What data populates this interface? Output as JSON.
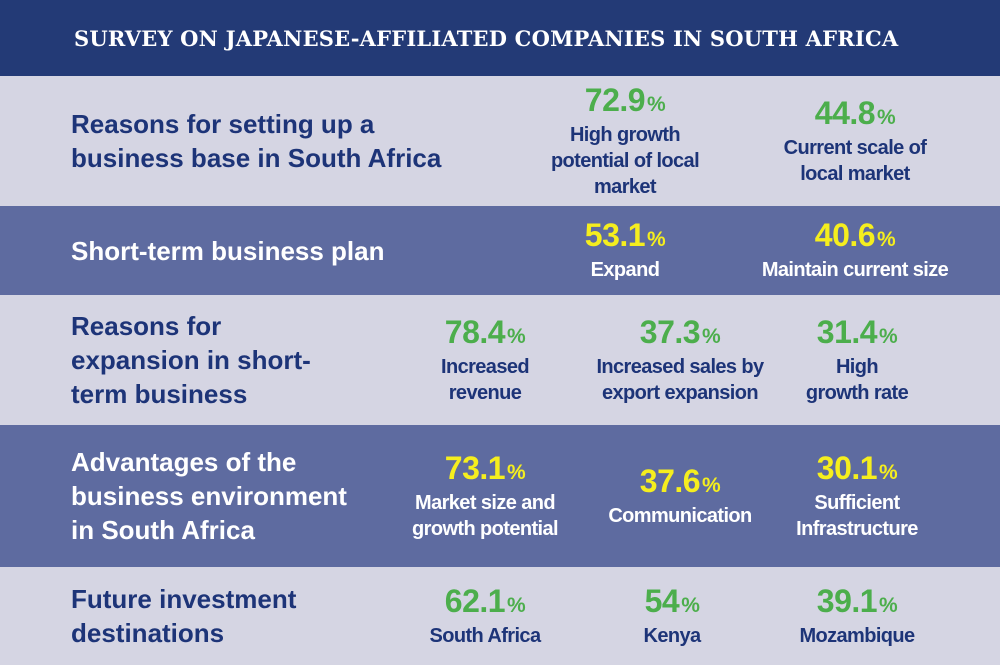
{
  "title": "SURVEY ON JAPANESE-AFFILIATED COMPANIES IN SOUTH AFRICA",
  "colors": {
    "header": "#233a76",
    "light_row": "#d5d5e3",
    "dark_row": "#5e6ba0",
    "green": "#4cae4c",
    "yellow": "#f5ee1e",
    "navy_text": "#1d3478"
  },
  "rows": [
    {
      "title": "Reasons for setting up a\nbusiness base in South Africa",
      "stats": [
        {
          "value": "72.9",
          "unit": "%",
          "label": "High growth\npotential of local\nmarket"
        },
        {
          "value": "44.8",
          "unit": "%",
          "label": "Current scale of\nlocal market"
        }
      ]
    },
    {
      "title": "Short-term business plan",
      "stats": [
        {
          "value": "53.1",
          "unit": "%",
          "label": "Expand"
        },
        {
          "value": "40.6",
          "unit": "%",
          "label": "Maintain current size"
        }
      ]
    },
    {
      "title": "Reasons for\nexpansion in short-\nterm business",
      "stats": [
        {
          "value": "78.4",
          "unit": "%",
          "label": "Increased\nrevenue"
        },
        {
          "value": "37.3",
          "unit": "%",
          "label": "Increased sales by\nexport expansion"
        },
        {
          "value": "31.4",
          "unit": "%",
          "label": "High\ngrowth rate"
        }
      ]
    },
    {
      "title": "Advantages of the\nbusiness environment\nin South Africa",
      "stats": [
        {
          "value": "73.1",
          "unit": "%",
          "label": "Market size and\ngrowth potential"
        },
        {
          "value": "37.6",
          "unit": "%",
          "label": "Communication"
        },
        {
          "value": "30.1",
          "unit": "%",
          "label": "Sufficient\nInfrastructure"
        }
      ]
    },
    {
      "title": "Future investment\ndestinations",
      "stats": [
        {
          "value": "62.1",
          "unit": "%",
          "label": "South Africa"
        },
        {
          "value": "54",
          "unit": "%",
          "label": "Kenya"
        },
        {
          "value": "39.1",
          "unit": "%",
          "label": "Mozambique"
        }
      ]
    }
  ]
}
